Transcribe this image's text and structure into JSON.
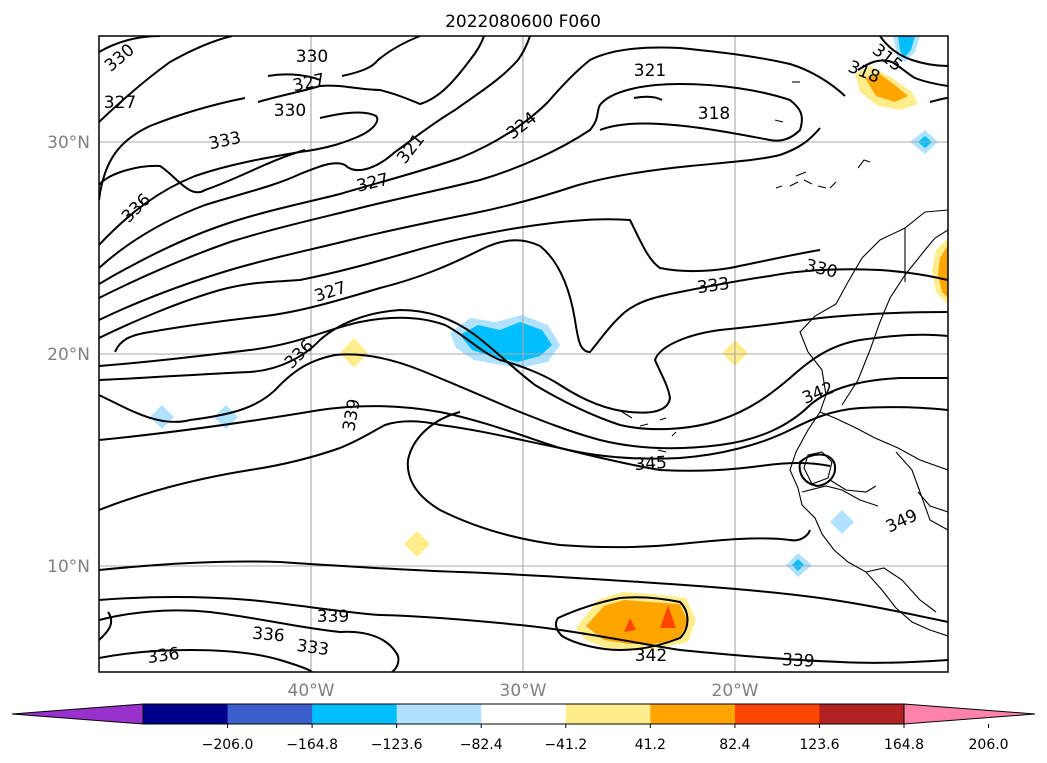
{
  "title": "2022080600 F060",
  "map": {
    "lat_labels": [
      "30°N",
      "20°N",
      "10°N"
    ],
    "lon_labels": [
      "40°W",
      "30°W",
      "20°W"
    ],
    "contour_labels": [
      "330",
      "327",
      "330",
      "327",
      "321",
      "333",
      "330",
      "336",
      "327",
      "324",
      "321",
      "318",
      "318",
      "315",
      "330",
      "327",
      "333",
      "336",
      "339",
      "342",
      "345",
      "349",
      "339",
      "336",
      "333",
      "336",
      "342",
      "339"
    ]
  },
  "colorbar": {
    "ticks": [
      "−206.0",
      "−164.8",
      "−123.6",
      "−82.4",
      "−41.2",
      "41.2",
      "82.4",
      "123.6",
      "164.8",
      "206.0"
    ],
    "colors": [
      "#9932cc",
      "#00008b",
      "#3a5fcd",
      "#00bfff",
      "#b0e2ff",
      "#ffffff",
      "#ffec8b",
      "#ffa500",
      "#ff4500",
      "#b22222",
      "#ff82ab"
    ]
  }
}
